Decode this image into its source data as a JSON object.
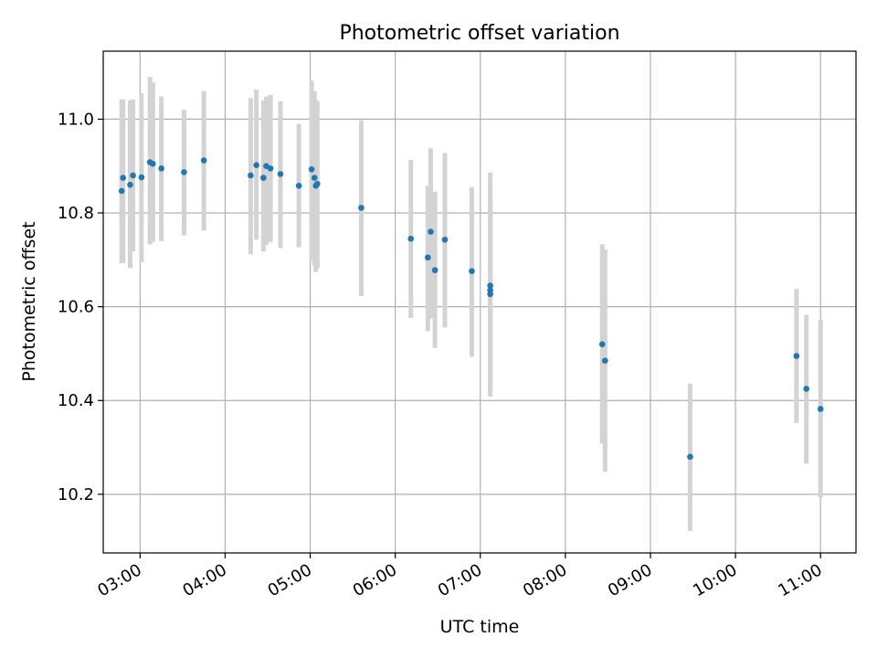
{
  "chart_data": {
    "type": "scatter",
    "title": "Photometric offset variation",
    "xlabel": "UTC time",
    "ylabel": "Photometric offset",
    "x_tick_labels": [
      "03:00",
      "04:00",
      "05:00",
      "06:00",
      "07:00",
      "08:00",
      "09:00",
      "10:00",
      "11:00"
    ],
    "x_tick_values": [
      "03:00",
      "04:00",
      "05:00",
      "06:00",
      "07:00",
      "08:00",
      "09:00",
      "10:00",
      "11:00"
    ],
    "y_tick_labels": [
      "10.2",
      "10.4",
      "10.6",
      "10.8",
      "11.0"
    ],
    "y_tick_values": [
      10.2,
      10.4,
      10.6,
      10.8,
      11.0
    ],
    "xlim": [
      "02:34",
      "11:25"
    ],
    "ylim": [
      10.075,
      11.145
    ],
    "grid": true,
    "colors": {
      "points": "#1f77b4",
      "errorbars": "#d3d3d3",
      "grid": "#b0b0b0"
    },
    "points": [
      {
        "x": "02:47",
        "y": 10.847,
        "ylow": 10.693,
        "yhigh": 11.042
      },
      {
        "x": "02:48",
        "y": 10.875,
        "ylow": 10.693,
        "yhigh": 11.042
      },
      {
        "x": "02:53",
        "y": 10.86,
        "ylow": 10.682,
        "yhigh": 11.04
      },
      {
        "x": "02:55",
        "y": 10.88,
        "ylow": 10.718,
        "yhigh": 11.042
      },
      {
        "x": "03:01",
        "y": 10.876,
        "ylow": 10.695,
        "yhigh": 11.055
      },
      {
        "x": "03:07",
        "y": 10.908,
        "ylow": 10.733,
        "yhigh": 11.09
      },
      {
        "x": "03:09",
        "y": 10.905,
        "ylow": 10.738,
        "yhigh": 11.078
      },
      {
        "x": "03:15",
        "y": 10.895,
        "ylow": 10.74,
        "yhigh": 11.048
      },
      {
        "x": "03:31",
        "y": 10.887,
        "ylow": 10.752,
        "yhigh": 11.02
      },
      {
        "x": "03:45",
        "y": 10.912,
        "ylow": 10.762,
        "yhigh": 11.06
      },
      {
        "x": "04:18",
        "y": 10.88,
        "ylow": 10.712,
        "yhigh": 11.045
      },
      {
        "x": "04:22",
        "y": 10.902,
        "ylow": 10.743,
        "yhigh": 11.063
      },
      {
        "x": "04:27",
        "y": 10.875,
        "ylow": 10.718,
        "yhigh": 11.04
      },
      {
        "x": "04:29",
        "y": 10.9,
        "ylow": 10.732,
        "yhigh": 11.048
      },
      {
        "x": "04:32",
        "y": 10.895,
        "ylow": 10.738,
        "yhigh": 11.052
      },
      {
        "x": "04:39",
        "y": 10.883,
        "ylow": 10.725,
        "yhigh": 11.038
      },
      {
        "x": "04:52",
        "y": 10.858,
        "ylow": 10.727,
        "yhigh": 10.99
      },
      {
        "x": "05:01",
        "y": 10.893,
        "ylow": 10.698,
        "yhigh": 11.082
      },
      {
        "x": "05:03",
        "y": 10.875,
        "ylow": 10.688,
        "yhigh": 11.06
      },
      {
        "x": "05:04",
        "y": 10.858,
        "ylow": 10.674,
        "yhigh": 11.04
      },
      {
        "x": "05:05",
        "y": 10.862,
        "ylow": 10.682,
        "yhigh": 11.038
      },
      {
        "x": "05:36",
        "y": 10.811,
        "ylow": 10.623,
        "yhigh": 10.998
      },
      {
        "x": "06:11",
        "y": 10.745,
        "ylow": 10.576,
        "yhigh": 10.913
      },
      {
        "x": "06:23",
        "y": 10.705,
        "ylow": 10.548,
        "yhigh": 10.858
      },
      {
        "x": "06:25",
        "y": 10.76,
        "ylow": 10.575,
        "yhigh": 10.938
      },
      {
        "x": "06:28",
        "y": 10.678,
        "ylow": 10.512,
        "yhigh": 10.845
      },
      {
        "x": "06:35",
        "y": 10.743,
        "ylow": 10.556,
        "yhigh": 10.928
      },
      {
        "x": "06:54",
        "y": 10.676,
        "ylow": 10.493,
        "yhigh": 10.855
      },
      {
        "x": "07:07",
        "y": 10.645,
        "ylow": 10.408,
        "yhigh": 10.886
      },
      {
        "x": "07:07",
        "y": 10.635,
        "ylow": 10.418,
        "yhigh": 10.846
      },
      {
        "x": "07:07",
        "y": 10.627,
        "ylow": 10.425,
        "yhigh": 10.833
      },
      {
        "x": "08:26",
        "y": 10.52,
        "ylow": 10.308,
        "yhigh": 10.733
      },
      {
        "x": "08:28",
        "y": 10.485,
        "ylow": 10.248,
        "yhigh": 10.722
      },
      {
        "x": "09:28",
        "y": 10.28,
        "ylow": 10.122,
        "yhigh": 10.436
      },
      {
        "x": "10:43",
        "y": 10.495,
        "ylow": 10.352,
        "yhigh": 10.638
      },
      {
        "x": "10:50",
        "y": 10.425,
        "ylow": 10.265,
        "yhigh": 10.583
      },
      {
        "x": "11:00",
        "y": 10.382,
        "ylow": 10.193,
        "yhigh": 10.572
      }
    ]
  }
}
